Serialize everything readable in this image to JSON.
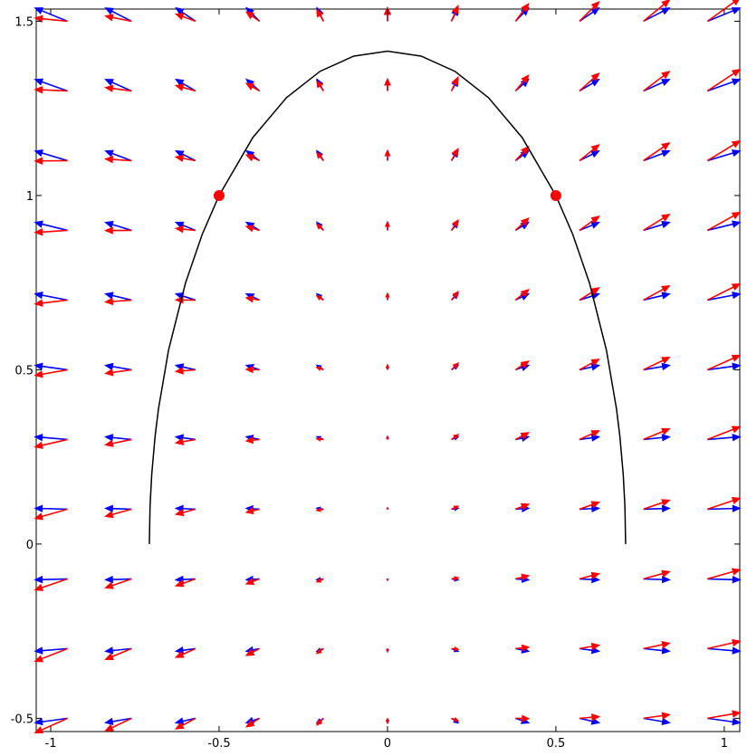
{
  "chart_data": {
    "type": "quiver",
    "xlim": [
      -1.043,
      1.046
    ],
    "ylim": [
      -0.538,
      1.535
    ],
    "xticks": [
      -1,
      -0.5,
      0,
      0.5,
      1
    ],
    "yticks": [
      -0.5,
      0,
      0.5,
      1,
      1.5
    ],
    "x": [
      -0.95,
      -0.76,
      -0.57,
      -0.38,
      -0.19,
      0,
      0.19,
      0.38,
      0.57,
      0.76,
      0.95
    ],
    "y": [
      -0.5,
      -0.3,
      -0.1,
      0.1,
      0.3,
      0.5,
      0.7,
      0.9,
      1.1,
      1.3,
      1.5
    ],
    "series": [
      {
        "color": "#0000ff",
        "u": [
          [
            -0.095,
            -0.076,
            -0.057,
            -0.038,
            -0.019,
            0,
            0.019,
            0.038,
            0.057,
            0.076,
            0.095
          ],
          [
            -0.095,
            -0.076,
            -0.057,
            -0.038,
            -0.019,
            0,
            0.019,
            0.038,
            0.057,
            0.076,
            0.095
          ],
          [
            -0.095,
            -0.076,
            -0.057,
            -0.038,
            -0.019,
            0,
            0.019,
            0.038,
            0.057,
            0.076,
            0.095
          ],
          [
            -0.095,
            -0.076,
            -0.057,
            -0.038,
            -0.019,
            0,
            0.019,
            0.038,
            0.057,
            0.076,
            0.095
          ],
          [
            -0.095,
            -0.076,
            -0.057,
            -0.038,
            -0.019,
            0,
            0.019,
            0.038,
            0.057,
            0.076,
            0.095
          ],
          [
            -0.095,
            -0.076,
            -0.057,
            -0.038,
            -0.019,
            0,
            0.019,
            0.038,
            0.057,
            0.076,
            0.095
          ],
          [
            -0.095,
            -0.076,
            -0.057,
            -0.038,
            -0.019,
            0,
            0.019,
            0.038,
            0.057,
            0.076,
            0.095
          ],
          [
            -0.095,
            -0.076,
            -0.057,
            -0.038,
            -0.019,
            0,
            0.019,
            0.038,
            0.057,
            0.076,
            0.095
          ],
          [
            -0.095,
            -0.076,
            -0.057,
            -0.038,
            -0.019,
            0,
            0.019,
            0.038,
            0.057,
            0.076,
            0.095
          ],
          [
            -0.095,
            -0.076,
            -0.057,
            -0.038,
            -0.019,
            0,
            0.019,
            0.038,
            0.057,
            0.076,
            0.095
          ],
          [
            -0.095,
            -0.076,
            -0.057,
            -0.038,
            -0.019,
            0,
            0.019,
            0.038,
            0.057,
            0.076,
            0.095
          ]
        ],
        "v": [
          [
            -0.0125,
            -0.0125,
            -0.0125,
            -0.0125,
            -0.0125,
            -0.0125,
            -0.0125,
            -0.0125,
            -0.0125,
            -0.0125,
            -0.0125
          ],
          [
            -0.0075,
            -0.0075,
            -0.0075,
            -0.0075,
            -0.0075,
            -0.0075,
            -0.0075,
            -0.0075,
            -0.0075,
            -0.0075,
            -0.0075
          ],
          [
            -0.0025,
            -0.0025,
            -0.0025,
            -0.0025,
            -0.0025,
            -0.0025,
            -0.0025,
            -0.0025,
            -0.0025,
            -0.0025,
            -0.0025
          ],
          [
            0.0025,
            0.0025,
            0.0025,
            0.0025,
            0.0025,
            0.0025,
            0.0025,
            0.0025,
            0.0025,
            0.0025,
            0.0025
          ],
          [
            0.0075,
            0.0075,
            0.0075,
            0.0075,
            0.0075,
            0.0075,
            0.0075,
            0.0075,
            0.0075,
            0.0075,
            0.0075
          ],
          [
            0.0125,
            0.0125,
            0.0125,
            0.0125,
            0.0125,
            0.0125,
            0.0125,
            0.0125,
            0.0125,
            0.0125,
            0.0125
          ],
          [
            0.0175,
            0.0175,
            0.0175,
            0.0175,
            0.0175,
            0.0175,
            0.0175,
            0.0175,
            0.0175,
            0.0175,
            0.0175
          ],
          [
            0.0225,
            0.0225,
            0.0225,
            0.0225,
            0.0225,
            0.0225,
            0.0225,
            0.0225,
            0.0225,
            0.0225,
            0.0225
          ],
          [
            0.0275,
            0.0275,
            0.0275,
            0.0275,
            0.0275,
            0.0275,
            0.0275,
            0.0275,
            0.0275,
            0.0275,
            0.0275
          ],
          [
            0.0325,
            0.0325,
            0.0325,
            0.0325,
            0.0325,
            0.0325,
            0.0325,
            0.0325,
            0.0325,
            0.0325,
            0.0325
          ],
          [
            0.0375,
            0.0375,
            0.0375,
            0.0375,
            0.0375,
            0.0375,
            0.0375,
            0.0375,
            0.0375,
            0.0375,
            0.0375
          ]
        ]
      },
      {
        "color": "#ff0000",
        "u": [
          [
            -0.095,
            -0.076,
            -0.057,
            -0.038,
            -0.019,
            0,
            0.019,
            0.038,
            0.057,
            0.076,
            0.095
          ],
          [
            -0.095,
            -0.076,
            -0.057,
            -0.038,
            -0.019,
            0,
            0.019,
            0.038,
            0.057,
            0.076,
            0.095
          ],
          [
            -0.095,
            -0.076,
            -0.057,
            -0.038,
            -0.019,
            0,
            0.019,
            0.038,
            0.057,
            0.076,
            0.095
          ],
          [
            -0.095,
            -0.076,
            -0.057,
            -0.038,
            -0.019,
            0,
            0.019,
            0.038,
            0.057,
            0.076,
            0.095
          ],
          [
            -0.095,
            -0.076,
            -0.057,
            -0.038,
            -0.019,
            0,
            0.019,
            0.038,
            0.057,
            0.076,
            0.095
          ],
          [
            -0.095,
            -0.076,
            -0.057,
            -0.038,
            -0.019,
            0,
            0.019,
            0.038,
            0.057,
            0.076,
            0.095
          ],
          [
            -0.095,
            -0.076,
            -0.057,
            -0.038,
            -0.019,
            0,
            0.019,
            0.038,
            0.057,
            0.076,
            0.095
          ],
          [
            -0.095,
            -0.076,
            -0.057,
            -0.038,
            -0.019,
            0,
            0.019,
            0.038,
            0.057,
            0.076,
            0.095
          ],
          [
            -0.095,
            -0.076,
            -0.057,
            -0.038,
            -0.019,
            0,
            0.019,
            0.038,
            0.057,
            0.076,
            0.095
          ],
          [
            -0.095,
            -0.076,
            -0.057,
            -0.038,
            -0.019,
            0,
            0.019,
            0.038,
            0.057,
            0.076,
            0.095
          ],
          [
            -0.095,
            -0.076,
            -0.057,
            -0.038,
            -0.019,
            0,
            0.019,
            0.038,
            0.057,
            0.076,
            0.095
          ]
        ],
        "v": [
          [
            -0.041,
            -0.0353,
            -0.0296,
            -0.0239,
            -0.0182,
            -0.0125,
            -0.0068,
            -0.0011,
            0.0046,
            0.0103,
            0.016
          ],
          [
            -0.036,
            -0.0303,
            -0.0246,
            -0.0189,
            -0.0132,
            -0.0075,
            -0.0018,
            0.0039,
            0.0096,
            0.0153,
            0.021
          ],
          [
            -0.031,
            -0.0253,
            -0.0196,
            -0.0139,
            -0.0082,
            -0.0025,
            0.0032,
            0.0089,
            0.0146,
            0.0203,
            0.026
          ],
          [
            -0.026,
            -0.0203,
            -0.0146,
            -0.0089,
            -0.0032,
            0.0025,
            0.0082,
            0.0139,
            0.0196,
            0.0253,
            0.031
          ],
          [
            -0.021,
            -0.0153,
            -0.0096,
            -0.0039,
            0.0018,
            0.0075,
            0.0132,
            0.0189,
            0.0246,
            0.0303,
            0.036
          ],
          [
            -0.016,
            -0.0103,
            -0.0046,
            0.0011,
            0.0068,
            0.0125,
            0.0182,
            0.0239,
            0.0296,
            0.0353,
            0.041
          ],
          [
            -0.011,
            -0.0053,
            0.0004,
            0.0061,
            0.0118,
            0.0175,
            0.0232,
            0.0289,
            0.0346,
            0.0403,
            0.046
          ],
          [
            -0.006,
            -0.0003,
            0.0054,
            0.0111,
            0.0168,
            0.0225,
            0.0282,
            0.0339,
            0.0396,
            0.0453,
            0.051
          ],
          [
            -0.001,
            0.0047,
            0.0104,
            0.0161,
            0.0218,
            0.0275,
            0.0332,
            0.0389,
            0.0446,
            0.0503,
            0.056
          ],
          [
            0.004,
            0.0097,
            0.0154,
            0.0211,
            0.0268,
            0.0325,
            0.0382,
            0.0439,
            0.0496,
            0.0553,
            0.061
          ],
          [
            0.009,
            0.0147,
            0.0204,
            0.0261,
            0.0318,
            0.0375,
            0.0432,
            0.0489,
            0.0546,
            0.0603,
            0.066
          ]
        ]
      }
    ],
    "curve": {
      "color": "#000000",
      "x": [
        -0.7071,
        -0.705,
        -0.7,
        -0.69,
        -0.68,
        -0.65,
        -0.6,
        -0.55,
        -0.5,
        -0.4,
        -0.3,
        -0.2,
        -0.1,
        0,
        0.1,
        0.2,
        0.3,
        0.4,
        0.5,
        0.55,
        0.6,
        0.65,
        0.68,
        0.69,
        0.7,
        0.705,
        0.7071
      ],
      "y": [
        0,
        0.1091,
        0.2,
        0.3092,
        0.3878,
        0.5568,
        0.7483,
        0.8888,
        1,
        1.1662,
        1.2806,
        1.3565,
        1.4,
        1.4142,
        1.4,
        1.3565,
        1.2806,
        1.1662,
        1,
        0.8888,
        0.7483,
        0.5568,
        0.3878,
        0.3092,
        0.2,
        0.1091,
        0
      ]
    },
    "points": {
      "color": "#ff0000",
      "x": [
        -0.5,
        0.5
      ],
      "y": [
        1,
        1
      ]
    }
  }
}
